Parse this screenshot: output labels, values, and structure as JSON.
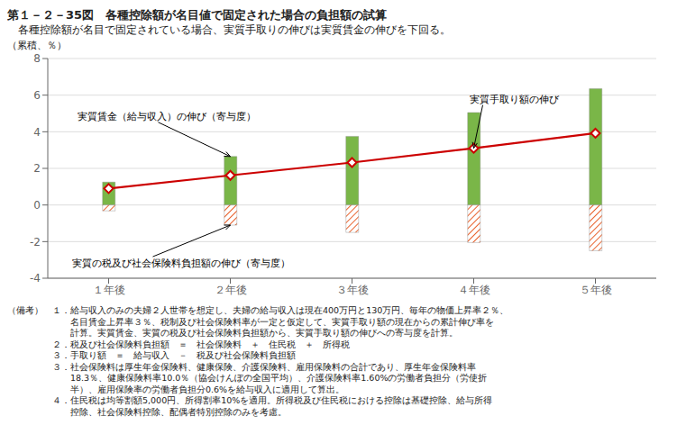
{
  "chart_data": {
    "type": "bar",
    "title": "第１－２－35図　各種控除額が名目値で固定された場合の負担額の試算",
    "subtitle": "　各種控除額が名目で固定されている場合、実質手取りの伸びは実質賃金の伸びを下回る。",
    "ylabel": "（累積、％）",
    "categories": [
      "１年後",
      "２年後",
      "３年後",
      "４年後",
      "５年後"
    ],
    "series": [
      {
        "type": "bar",
        "color": "#7ab648",
        "values": [
          1.25,
          2.65,
          3.75,
          5.05,
          6.35
        ]
      },
      {
        "type": "bar",
        "color": "#e8612c",
        "values": [
          -0.32,
          -1.1,
          -1.5,
          -2.05,
          -2.5
        ]
      },
      {
        "type": "line",
        "color": "#cc0000",
        "marker": "diamond",
        "values": [
          0.9,
          1.62,
          2.32,
          3.1,
          3.92
        ]
      }
    ],
    "stacked": true,
    "ylim": [
      -4,
      8
    ],
    "yticks": [
      -4,
      -2,
      0,
      2,
      4,
      6,
      8
    ],
    "grid": true,
    "annotations": [
      {
        "text": "実質賃金（給与収入）の伸び（寄与度）",
        "x": "２年後",
        "y": 2.65
      },
      {
        "text": "実質の税及び社会保険料負担額の伸び（寄与度）",
        "x": "２年後",
        "y": -1.1
      },
      {
        "text": "実質手取り額の伸び",
        "x": "４年後",
        "y": 3.1
      }
    ],
    "note_label": "（備考）",
    "note_lines": [
      "１．給与収入のみの夫婦２人世帯を想定し、夫婦の給与収入は現在400万円と130万円、毎年の物価上昇率２％、",
      "　　名目賃金上昇率３％、税制及び社会保険料率が一定と仮定して、実質手取り額の現在からの累計伸び率を",
      "　　計算。実質賃金、実質の税及び社会保険料負担額から、実質手取り額の伸びへの寄与度を計算。",
      "２．税及び社会保険料負担額　＝　社会保険料　＋　住民税　＋　所得税",
      "３．手取り額　＝　給与収入　－　税及び社会保険料負担額",
      "３．社会保険料は厚生年金保険料、健康保険、介護保険料、雇用保険料の合計であり、厚生年金保険料率",
      "　　18.3％、健康保険料率10.0％（協会けんぽの全国平均）、介護保険料率1.60%の労働者負担分（労使折",
      "　　半）、雇用保険率の労働者負担分0.6%を給与収入に適用して算出。",
      "４．住民税は均等割額5,000円、所得割率10%を適用。所得税及び住民税における控除は基礎控除、給与所得",
      "　　控除、社会保険料控除、配偶者特別控除のみを考慮。"
    ]
  }
}
